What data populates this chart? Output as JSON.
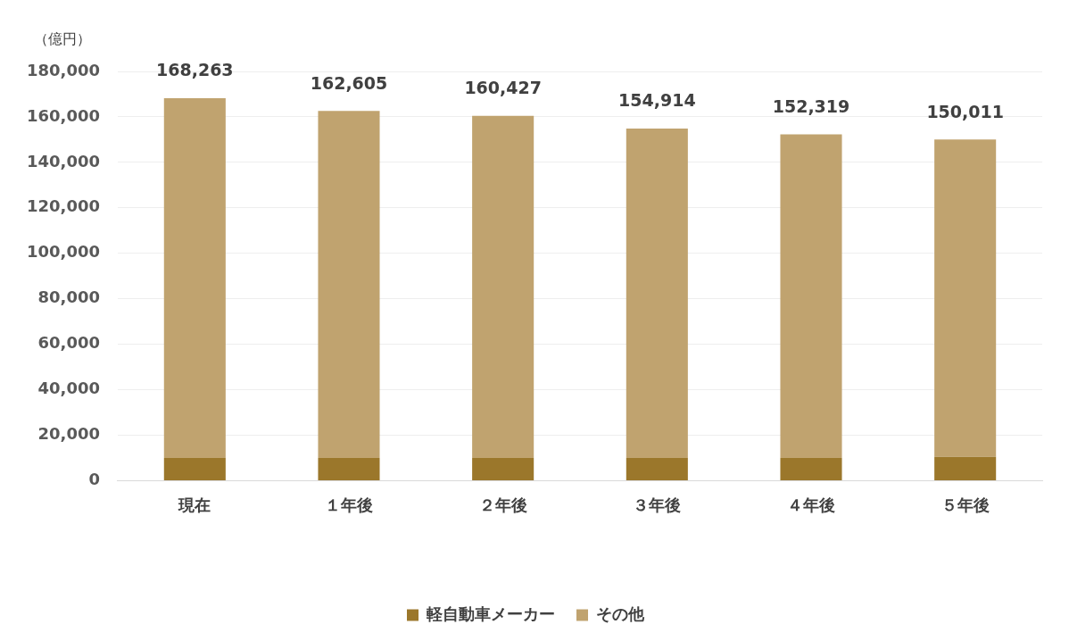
{
  "chart_data": {
    "type": "bar",
    "stacked": true,
    "ylabel": "（億円）",
    "categories": [
      "現在",
      "１年後",
      "２年後",
      "３年後",
      "４年後",
      "５年後"
    ],
    "series": [
      {
        "name": "軽自動車メーカー",
        "color": "#9b772b",
        "values": [
          10000,
          10000,
          10000,
          10000,
          10000,
          10500
        ]
      },
      {
        "name": "その他",
        "color": "#c0a36f",
        "values": [
          158263,
          152605,
          150427,
          144914,
          142319,
          139511
        ]
      }
    ],
    "totals": [
      "168,263",
      "162,605",
      "160,427",
      "154,914",
      "152,319",
      "150,011"
    ],
    "ylim": [
      0,
      180000
    ],
    "yticks": [
      0,
      {
        "value": 20000,
        "label": "20,000"
      },
      {
        "value": 40000,
        "label": "40,000"
      },
      {
        "value": 60000,
        "label": "60,000"
      },
      {
        "value": 80000,
        "label": "80,000"
      },
      {
        "value": 100000,
        "label": "100,000"
      },
      {
        "value": 120000,
        "label": "120,000"
      },
      {
        "value": 140000,
        "label": "140,000"
      },
      {
        "value": 160000,
        "label": "160,000"
      },
      {
        "value": 180000,
        "label": "180,000"
      }
    ],
    "grid": "y",
    "legend": "bottom"
  }
}
